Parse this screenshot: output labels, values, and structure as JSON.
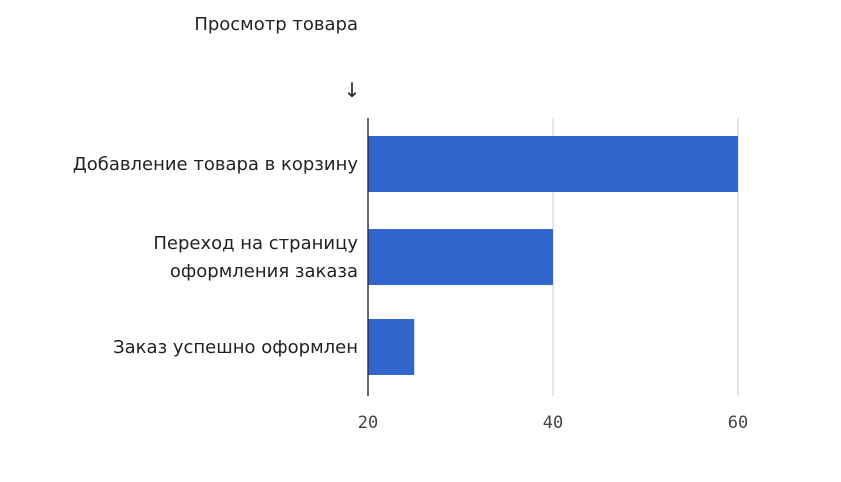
{
  "chart_data": {
    "type": "bar",
    "orientation": "horizontal",
    "title": "Просмотр товара",
    "title_marker": "↓",
    "categories": [
      [
        "Добавление товара в корзину"
      ],
      [
        "Переход на страницу",
        "оформления заказа"
      ],
      [
        "Заказ успешно оформлен"
      ]
    ],
    "values": [
      60,
      40,
      25
    ],
    "xlim": [
      20,
      60
    ],
    "xticks": [
      20,
      40,
      60
    ],
    "xlabel": "",
    "ylabel": "",
    "grid": true,
    "legend": "none",
    "bar_color": "#3366cc",
    "grid_color": "#cccccc",
    "axis_color": "#333333"
  }
}
